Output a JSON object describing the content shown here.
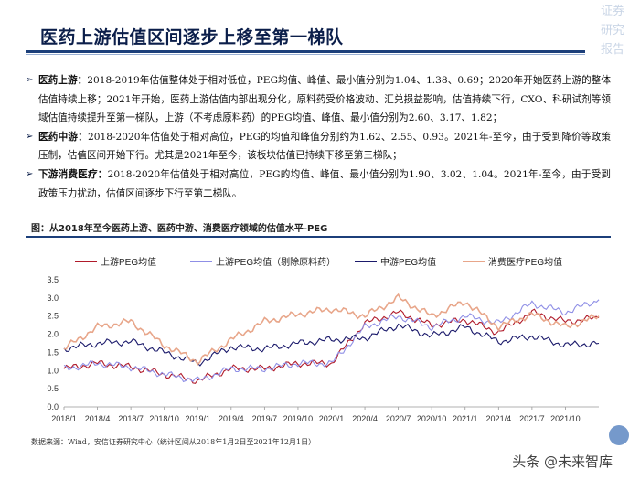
{
  "header": {
    "title": "医药上游估值区间逐步上移至第一梯队",
    "brand_lines": [
      "证券",
      "研究",
      "报告"
    ]
  },
  "bullets": [
    {
      "lead": "医药上游：",
      "text": "2018-2019年估值整体处于相对低位，PEG均值、峰值、最小值分别为1.04、1.38、0.69；2020年开始医药上游的整体估值持续上移；2021年开始，医药上游估值内部出现分化，原料药受价格波动、汇兑损益影响，估值持续下行，CXO、科研试剂等领域估值持续提升至第一梯队，上游（不考虑原料药）的PEG均值、峰值、最小值分别为2.60、3.17、1.82；"
    },
    {
      "lead": "医药中游：",
      "text": "2018-2020年估值处于相对高位，PEG的均值和峰值分别约为1.62、2.55、0.93。2021年-至今，由于受到降价等政策压制，估值区间开始下行。尤其是2021年至今，该板块估值已持续下移至第三梯队；"
    },
    {
      "lead": "下游消费医疗：",
      "text": "2018-2020年估值处于相对高位，PEG的均值、峰值、最小值分别为1.90、3.02、1.04。2021年-至今，由于受到政策压力扰动，估值区间逐步下行至第二梯队。"
    }
  ],
  "figure": {
    "caption": "图：从2018年至今医药上游、医药中游、消费医疗领域的估值水平-PEG",
    "source": "数据来源：Wind，安信证券研究中心（统计区间从2018年1月2日至2021年12月1日）"
  },
  "watermark": "头条 @未来智库",
  "chart_data": {
    "type": "line",
    "x": [
      "2018/1",
      "2018/4",
      "2018/7",
      "2018/10",
      "2019/1",
      "2019/4",
      "2019/7",
      "2019/10",
      "2020/1",
      "2020/4",
      "2020/7",
      "2020/10",
      "2021/1",
      "2021/4",
      "2021/7",
      "2021/10",
      "2021/12"
    ],
    "ylim": [
      0,
      3.5
    ],
    "yticks": [
      "0.0",
      "0.5",
      "1.0",
      "1.5",
      "2.0",
      "2.5",
      "3.0",
      "3.5"
    ],
    "xticks": [
      "2018/1",
      "2018/4",
      "2018/7",
      "2018/10",
      "2019/1",
      "2019/4",
      "2019/7",
      "2019/10",
      "2020/1",
      "2020/4",
      "2020/7",
      "2020/10",
      "2021/1",
      "2021/4",
      "2021/7",
      "2021/10"
    ],
    "legend_position": "top",
    "grid": false,
    "series": [
      {
        "name": "上游PEG均值",
        "color": "#b01a2a",
        "values": [
          1.05,
          1.2,
          1.1,
          0.9,
          0.72,
          1.05,
          1.05,
          1.2,
          1.2,
          2.3,
          2.6,
          2.25,
          2.4,
          2.05,
          2.6,
          2.35,
          2.45
        ]
      },
      {
        "name": "上游PEG均值（剔除原料药）",
        "color": "#8f8fe6",
        "values": [
          1.05,
          1.2,
          1.1,
          0.9,
          0.72,
          1.05,
          1.05,
          1.2,
          1.2,
          2.2,
          2.5,
          2.2,
          2.5,
          2.3,
          2.85,
          2.6,
          2.95
        ]
      },
      {
        "name": "中游PEG均值",
        "color": "#1b1a6b",
        "values": [
          1.6,
          1.75,
          1.8,
          1.5,
          1.2,
          1.65,
          1.6,
          1.75,
          1.85,
          1.9,
          2.25,
          1.95,
          2.2,
          1.8,
          1.95,
          1.7,
          1.75
        ]
      },
      {
        "name": "消费医疗PEG均值",
        "color": "#e8a68a",
        "values": [
          1.6,
          2.2,
          2.35,
          1.7,
          1.25,
          1.85,
          2.35,
          2.55,
          2.7,
          2.5,
          3.0,
          2.5,
          2.9,
          2.2,
          2.55,
          2.2,
          2.5
        ]
      }
    ]
  }
}
